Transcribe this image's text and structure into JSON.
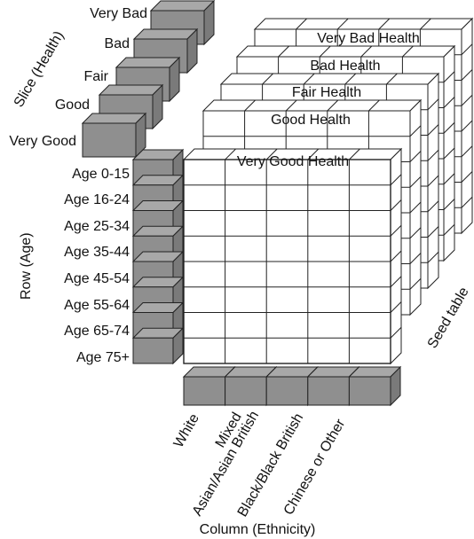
{
  "axes": {
    "slice_label": "Slice (Health)",
    "row_label": "Row (Age)",
    "column_label": "Column (Ethnicity)",
    "seed_label": "Seed table"
  },
  "slices": [
    "Very Bad",
    "Bad",
    "Fair",
    "Good",
    "Very Good"
  ],
  "slice_titles": [
    "Very Bad Health",
    "Bad Health",
    "Fair Health",
    "Good Health",
    "Very Good Health"
  ],
  "rows": [
    "Age 0-15",
    "Age 16-24",
    "Age 25-34",
    "Age 35-44",
    "Age 45-54",
    "Age 55-64",
    "Age 65-74",
    "Age 75+"
  ],
  "columns": [
    "White",
    "Mixed",
    "Asian/Asian British",
    "Black/Black British",
    "Chinese or Other"
  ],
  "colors": {
    "block": "#8f8f8f",
    "block_side": "#7a7a7a",
    "block_top": "#a8a8a8",
    "grid": "#222222"
  }
}
